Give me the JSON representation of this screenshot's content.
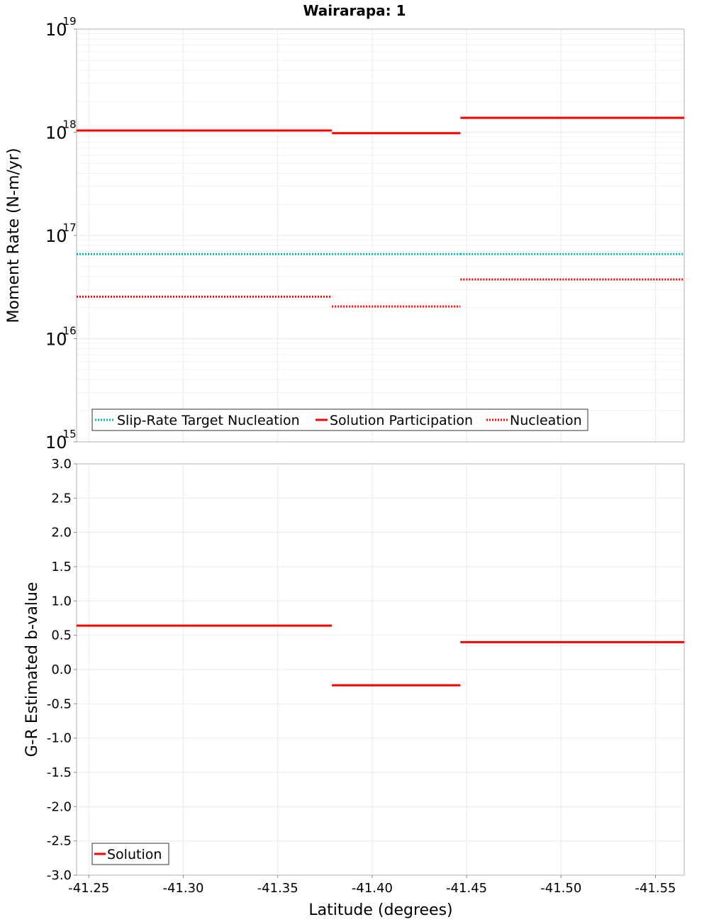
{
  "title": "Wairarapa: 1",
  "colors": {
    "solution": "#ff0000",
    "target": "#00b4b4",
    "nucleation": "#ff0000"
  },
  "chart_data": [
    {
      "type": "line",
      "panel": "top",
      "ylabel": "Moment Rate (N-m/yr)",
      "yscale": "log",
      "ylim_exp": [
        15,
        19
      ],
      "y_ticks": [
        {
          "base": "10",
          "exp": "19",
          "value": 19
        },
        {
          "base": "10",
          "exp": "18",
          "value": 18
        },
        {
          "base": "10",
          "exp": "17",
          "value": 17
        },
        {
          "base": "10",
          "exp": "16",
          "value": 16
        },
        {
          "base": "10",
          "exp": "15",
          "value": 15
        }
      ],
      "xlim": [
        -41.2435,
        -41.5652
      ],
      "legend_position": "bottom-left",
      "series": [
        {
          "name": "Slip-Rate Target Nucleation",
          "style": "dotted",
          "color_key": "target",
          "segments": [
            {
              "x0": -41.2435,
              "x1": -41.3787,
              "y": 6.6e+16
            },
            {
              "x0": -41.3787,
              "x1": -41.4467,
              "y": 6.6e+16
            },
            {
              "x0": -41.4467,
              "x1": -41.5652,
              "y": 6.6e+16
            }
          ]
        },
        {
          "name": "Solution Participation",
          "style": "solid",
          "color_key": "solution",
          "segments": [
            {
              "x0": -41.2435,
              "x1": -41.3787,
              "y": 1.04e+18
            },
            {
              "x0": -41.3787,
              "x1": -41.4467,
              "y": 9.8e+17
            },
            {
              "x0": -41.4467,
              "x1": -41.5652,
              "y": 1.38e+18
            }
          ]
        },
        {
          "name": "Nucleation",
          "style": "dotted",
          "color_key": "nucleation",
          "segments": [
            {
              "x0": -41.2435,
              "x1": -41.3787,
              "y": 2.55e+16
            },
            {
              "x0": -41.3787,
              "x1": -41.4467,
              "y": 2.05e+16
            },
            {
              "x0": -41.4467,
              "x1": -41.5652,
              "y": 3.75e+16
            }
          ]
        }
      ]
    },
    {
      "type": "line",
      "panel": "bottom",
      "ylabel": "G-R Estimated b-value",
      "xlabel": "Latitude (degrees)",
      "ylim": [
        -3.0,
        3.0
      ],
      "y_ticks": [
        "3.0",
        "2.5",
        "2.0",
        "1.5",
        "1.0",
        "0.5",
        "0.0",
        "-0.5",
        "-1.0",
        "-1.5",
        "-2.0",
        "-2.5",
        "-3.0"
      ],
      "x_ticks": [
        "-41.25",
        "-41.30",
        "-41.35",
        "-41.40",
        "-41.45",
        "-41.50",
        "-41.55"
      ],
      "xlim": [
        -41.2435,
        -41.5652
      ],
      "legend_position": "bottom-left",
      "series": [
        {
          "name": "Solution",
          "style": "solid",
          "color_key": "solution",
          "segments": [
            {
              "x0": -41.2435,
              "x1": -41.3787,
              "y": 0.64
            },
            {
              "x0": -41.3787,
              "x1": -41.4467,
              "y": -0.23
            },
            {
              "x0": -41.4467,
              "x1": -41.5652,
              "y": 0.4
            }
          ]
        }
      ]
    }
  ]
}
